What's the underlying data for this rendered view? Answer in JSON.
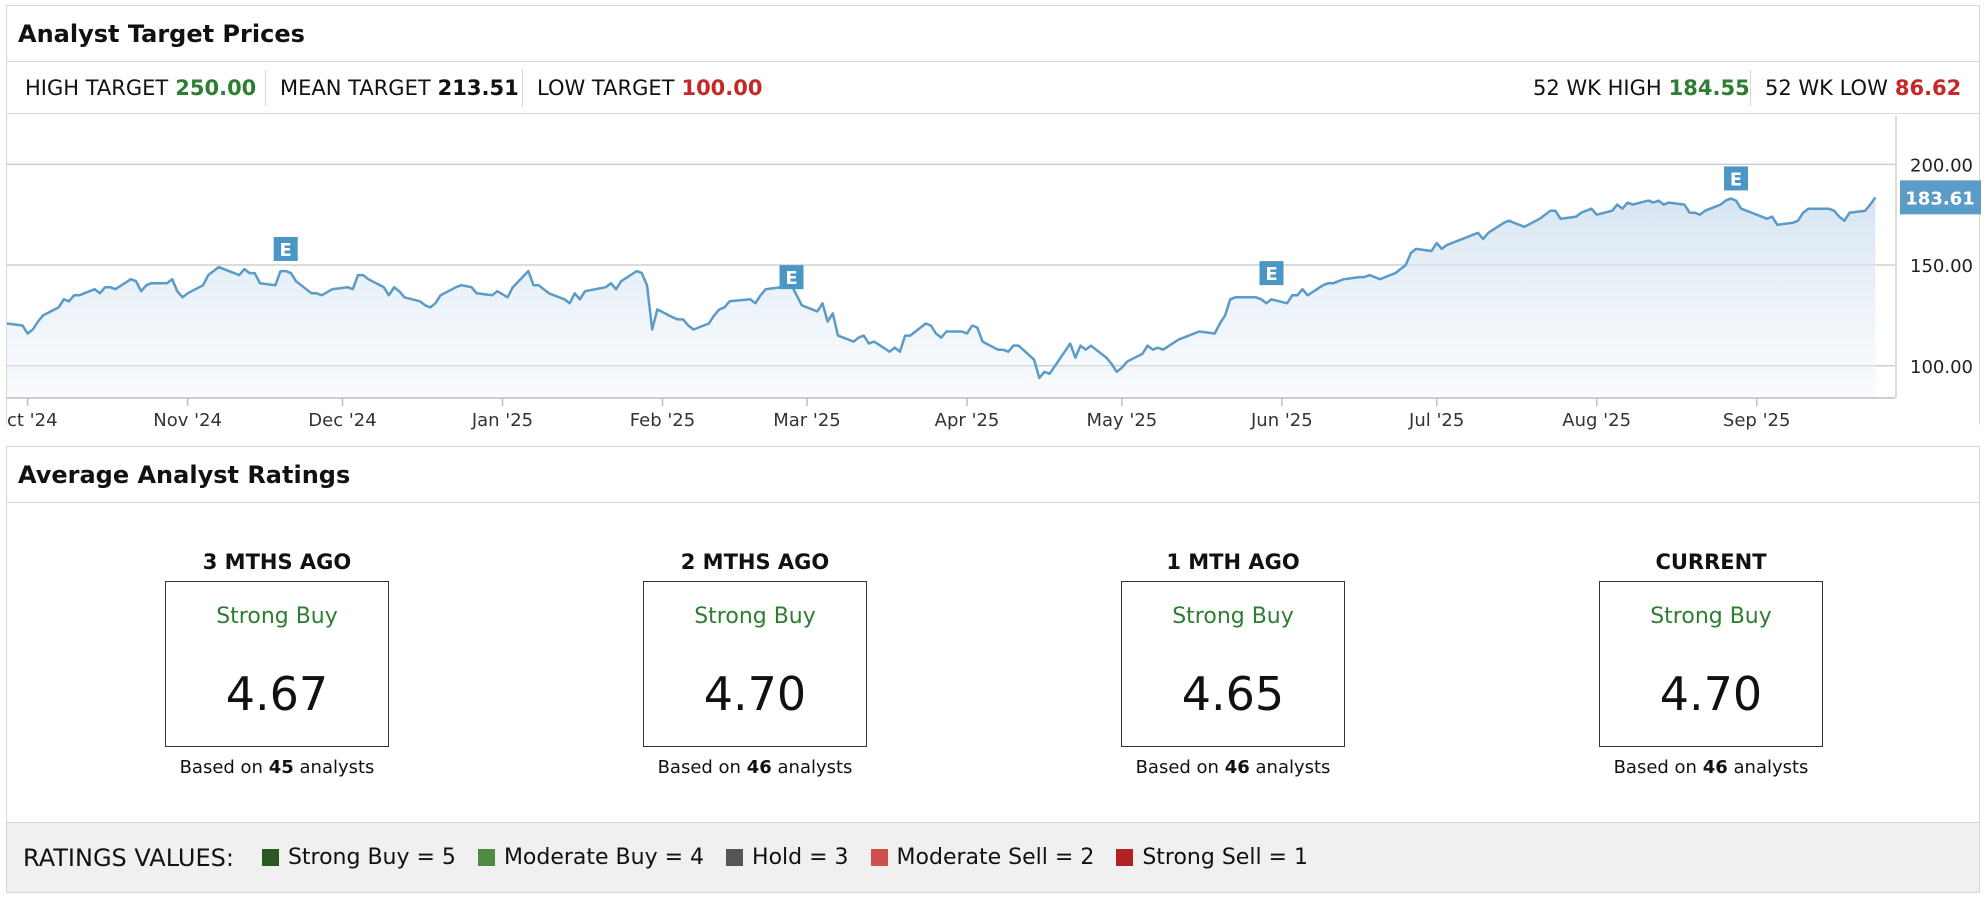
{
  "target_panel": {
    "title": "Analyst Target Prices",
    "high_target": {
      "label": "HIGH TARGET",
      "value": "250.00",
      "color": "#2e7d32"
    },
    "mean_target": {
      "label": "MEAN TARGET",
      "value": "213.51",
      "color": "#111111"
    },
    "low_target": {
      "label": "LOW TARGET",
      "value": "100.00",
      "color": "#c62828"
    },
    "wk52_high": {
      "label": "52 WK HIGH",
      "value": "184.55",
      "color": "#2e7d32"
    },
    "wk52_low": {
      "label": "52 WK LOW",
      "value": "86.62",
      "color": "#c62828"
    }
  },
  "chart_data": {
    "type": "area",
    "y_ticks": [
      "200.00",
      "150.00",
      "100.00"
    ],
    "y_tick_values": [
      200,
      150,
      100
    ],
    "ylim": [
      84,
      224
    ],
    "x_tick_labels": [
      "ct '24",
      "Nov '24",
      "Dec '24",
      "Jan '25",
      "Feb '25",
      "Mar '25",
      "Apr '25",
      "May '25",
      "Jun '25",
      "Jul '25",
      "Aug '25",
      "Sep '25"
    ],
    "x_tick_dates": [
      "2024-10-01",
      "2024-11-01",
      "2024-12-01",
      "2025-01-01",
      "2025-02-01",
      "2025-03-01",
      "2025-04-01",
      "2025-05-01",
      "2025-06-01",
      "2025-07-01",
      "2025-08-01",
      "2025-09-01"
    ],
    "current_price": "183.61",
    "earnings_marker_label": "E",
    "earnings_markers": [
      {
        "date": "2024-11-20",
        "price": 158
      },
      {
        "date": "2025-02-26",
        "price": 144
      },
      {
        "date": "2025-05-30",
        "price": 146
      },
      {
        "date": "2025-08-28",
        "price": 193
      }
    ],
    "line_color": "#5b9bc7",
    "series": [
      {
        "values": [
          [
            "2024-09-27",
            121
          ],
          [
            "2024-09-30",
            120
          ],
          [
            "2024-10-01",
            116
          ],
          [
            "2024-10-02",
            118
          ],
          [
            "2024-10-03",
            122
          ],
          [
            "2024-10-04",
            125
          ],
          [
            "2024-10-07",
            129
          ],
          [
            "2024-10-08",
            133
          ],
          [
            "2024-10-09",
            132
          ],
          [
            "2024-10-10",
            135
          ],
          [
            "2024-10-11",
            135
          ],
          [
            "2024-10-14",
            138
          ],
          [
            "2024-10-15",
            136
          ],
          [
            "2024-10-16",
            139
          ],
          [
            "2024-10-17",
            139
          ],
          [
            "2024-10-18",
            138
          ],
          [
            "2024-10-21",
            143
          ],
          [
            "2024-10-22",
            142
          ],
          [
            "2024-10-23",
            137
          ],
          [
            "2024-10-24",
            140
          ],
          [
            "2024-10-25",
            141
          ],
          [
            "2024-10-28",
            141
          ],
          [
            "2024-10-29",
            143
          ],
          [
            "2024-10-30",
            137
          ],
          [
            "2024-10-31",
            134
          ],
          [
            "2024-11-01",
            136
          ],
          [
            "2024-11-04",
            140
          ],
          [
            "2024-11-05",
            145
          ],
          [
            "2024-11-06",
            147
          ],
          [
            "2024-11-07",
            149
          ],
          [
            "2024-11-08",
            148
          ],
          [
            "2024-11-11",
            145
          ],
          [
            "2024-11-12",
            148
          ],
          [
            "2024-11-13",
            146
          ],
          [
            "2024-11-14",
            146
          ],
          [
            "2024-11-15",
            141
          ],
          [
            "2024-11-18",
            140
          ],
          [
            "2024-11-19",
            147
          ],
          [
            "2024-11-20",
            147
          ],
          [
            "2024-11-21",
            146
          ],
          [
            "2024-11-22",
            142
          ],
          [
            "2024-11-25",
            136
          ],
          [
            "2024-11-26",
            136
          ],
          [
            "2024-11-27",
            135
          ],
          [
            "2024-11-29",
            138
          ],
          [
            "2024-12-02",
            139
          ],
          [
            "2024-12-03",
            138
          ],
          [
            "2024-12-04",
            145
          ],
          [
            "2024-12-05",
            145
          ],
          [
            "2024-12-06",
            143
          ],
          [
            "2024-12-09",
            139
          ],
          [
            "2024-12-10",
            135
          ],
          [
            "2024-12-11",
            139
          ],
          [
            "2024-12-12",
            137
          ],
          [
            "2024-12-13",
            134
          ],
          [
            "2024-12-16",
            132
          ],
          [
            "2024-12-17",
            130
          ],
          [
            "2024-12-18",
            129
          ],
          [
            "2024-12-19",
            131
          ],
          [
            "2024-12-20",
            135
          ],
          [
            "2024-12-23",
            139
          ],
          [
            "2024-12-24",
            140
          ],
          [
            "2024-12-26",
            139
          ],
          [
            "2024-12-27",
            136
          ],
          [
            "2024-12-30",
            135
          ],
          [
            "2024-12-31",
            137
          ],
          [
            "2025-01-02",
            134
          ],
          [
            "2025-01-03",
            139
          ],
          [
            "2025-01-06",
            147
          ],
          [
            "2025-01-07",
            140
          ],
          [
            "2025-01-08",
            140
          ],
          [
            "2025-01-10",
            136
          ],
          [
            "2025-01-13",
            133
          ],
          [
            "2025-01-14",
            131
          ],
          [
            "2025-01-15",
            136
          ],
          [
            "2025-01-16",
            133
          ],
          [
            "2025-01-17",
            137
          ],
          [
            "2025-01-21",
            139
          ],
          [
            "2025-01-22",
            141
          ],
          [
            "2025-01-23",
            138
          ],
          [
            "2025-01-24",
            142
          ],
          [
            "2025-01-27",
            147
          ],
          [
            "2025-01-28",
            146
          ],
          [
            "2025-01-29",
            140
          ],
          [
            "2025-01-30",
            118
          ],
          [
            "2025-01-31",
            128
          ],
          [
            "2025-02-03",
            124
          ],
          [
            "2025-02-04",
            123
          ],
          [
            "2025-02-05",
            123
          ],
          [
            "2025-02-06",
            120
          ],
          [
            "2025-02-07",
            118
          ],
          [
            "2025-02-10",
            121
          ],
          [
            "2025-02-11",
            125
          ],
          [
            "2025-02-12",
            128
          ],
          [
            "2025-02-13",
            129
          ],
          [
            "2025-02-14",
            132
          ],
          [
            "2025-02-18",
            133
          ],
          [
            "2025-02-19",
            131
          ],
          [
            "2025-02-20",
            135
          ],
          [
            "2025-02-21",
            138
          ],
          [
            "2025-02-24",
            139
          ],
          [
            "2025-02-25",
            140
          ],
          [
            "2025-02-26",
            140
          ],
          [
            "2025-02-27",
            135
          ],
          [
            "2025-02-28",
            130
          ],
          [
            "2025-03-03",
            127
          ],
          [
            "2025-03-04",
            131
          ],
          [
            "2025-03-05",
            122
          ],
          [
            "2025-03-06",
            126
          ],
          [
            "2025-03-07",
            115
          ],
          [
            "2025-03-10",
            112
          ],
          [
            "2025-03-11",
            114
          ],
          [
            "2025-03-12",
            115
          ],
          [
            "2025-03-13",
            111
          ],
          [
            "2025-03-14",
            112
          ],
          [
            "2025-03-17",
            107
          ],
          [
            "2025-03-18",
            109
          ],
          [
            "2025-03-19",
            107
          ],
          [
            "2025-03-20",
            115
          ],
          [
            "2025-03-21",
            115
          ],
          [
            "2025-03-24",
            121
          ],
          [
            "2025-03-25",
            120
          ],
          [
            "2025-03-26",
            116
          ],
          [
            "2025-03-27",
            114
          ],
          [
            "2025-03-28",
            117
          ],
          [
            "2025-03-31",
            117
          ],
          [
            "2025-04-01",
            116
          ],
          [
            "2025-04-02",
            120
          ],
          [
            "2025-04-03",
            119
          ],
          [
            "2025-04-04",
            112
          ],
          [
            "2025-04-07",
            108
          ],
          [
            "2025-04-08",
            108
          ],
          [
            "2025-04-09",
            107
          ],
          [
            "2025-04-10",
            110
          ],
          [
            "2025-04-11",
            110
          ],
          [
            "2025-04-14",
            103
          ],
          [
            "2025-04-15",
            94
          ],
          [
            "2025-04-16",
            97
          ],
          [
            "2025-04-17",
            96
          ],
          [
            "2025-04-21",
            111
          ],
          [
            "2025-04-22",
            104
          ],
          [
            "2025-04-23",
            110
          ],
          [
            "2025-04-24",
            108
          ],
          [
            "2025-04-25",
            110
          ],
          [
            "2025-04-28",
            104
          ],
          [
            "2025-04-29",
            101
          ],
          [
            "2025-04-30",
            97
          ],
          [
            "2025-05-01",
            99
          ],
          [
            "2025-05-02",
            102
          ],
          [
            "2025-05-05",
            106
          ],
          [
            "2025-05-06",
            110
          ],
          [
            "2025-05-07",
            108
          ],
          [
            "2025-05-08",
            109
          ],
          [
            "2025-05-09",
            108
          ],
          [
            "2025-05-12",
            113
          ],
          [
            "2025-05-13",
            114
          ],
          [
            "2025-05-14",
            115
          ],
          [
            "2025-05-15",
            116
          ],
          [
            "2025-05-16",
            117
          ],
          [
            "2025-05-19",
            116
          ],
          [
            "2025-05-20",
            121
          ],
          [
            "2025-05-21",
            125
          ],
          [
            "2025-05-22",
            133
          ],
          [
            "2025-05-23",
            134
          ],
          [
            "2025-05-27",
            134
          ],
          [
            "2025-05-28",
            133
          ],
          [
            "2025-05-29",
            131
          ],
          [
            "2025-05-30",
            133
          ],
          [
            "2025-06-02",
            131
          ],
          [
            "2025-06-03",
            135
          ],
          [
            "2025-06-04",
            135
          ],
          [
            "2025-06-05",
            138
          ],
          [
            "2025-06-06",
            135
          ],
          [
            "2025-06-09",
            140
          ],
          [
            "2025-06-10",
            141
          ],
          [
            "2025-06-11",
            141
          ],
          [
            "2025-06-12",
            142
          ],
          [
            "2025-06-13",
            143
          ],
          [
            "2025-06-16",
            144
          ],
          [
            "2025-06-17",
            144
          ],
          [
            "2025-06-18",
            145
          ],
          [
            "2025-06-20",
            143
          ],
          [
            "2025-06-23",
            146
          ],
          [
            "2025-06-24",
            148
          ],
          [
            "2025-06-25",
            150
          ],
          [
            "2025-06-26",
            156
          ],
          [
            "2025-06-27",
            158
          ],
          [
            "2025-06-30",
            157
          ],
          [
            "2025-07-01",
            161
          ],
          [
            "2025-07-02",
            158
          ],
          [
            "2025-07-03",
            160
          ],
          [
            "2025-07-07",
            164
          ],
          [
            "2025-07-08",
            165
          ],
          [
            "2025-07-09",
            166
          ],
          [
            "2025-07-10",
            163
          ],
          [
            "2025-07-11",
            166
          ],
          [
            "2025-07-14",
            171
          ],
          [
            "2025-07-15",
            172
          ],
          [
            "2025-07-16",
            171
          ],
          [
            "2025-07-17",
            170
          ],
          [
            "2025-07-18",
            169
          ],
          [
            "2025-07-21",
            173
          ],
          [
            "2025-07-22",
            175
          ],
          [
            "2025-07-23",
            177
          ],
          [
            "2025-07-24",
            177
          ],
          [
            "2025-07-25",
            173
          ],
          [
            "2025-07-28",
            174
          ],
          [
            "2025-07-29",
            176
          ],
          [
            "2025-07-30",
            177
          ],
          [
            "2025-07-31",
            178
          ],
          [
            "2025-08-01",
            175
          ],
          [
            "2025-08-04",
            177
          ],
          [
            "2025-08-05",
            180
          ],
          [
            "2025-08-06",
            178
          ],
          [
            "2025-08-07",
            181
          ],
          [
            "2025-08-08",
            180
          ],
          [
            "2025-08-11",
            182
          ],
          [
            "2025-08-12",
            181
          ],
          [
            "2025-08-13",
            182
          ],
          [
            "2025-08-14",
            180
          ],
          [
            "2025-08-15",
            181
          ],
          [
            "2025-08-18",
            180
          ],
          [
            "2025-08-19",
            176
          ],
          [
            "2025-08-20",
            176
          ],
          [
            "2025-08-21",
            175
          ],
          [
            "2025-08-22",
            177
          ],
          [
            "2025-08-25",
            180
          ],
          [
            "2025-08-26",
            182
          ],
          [
            "2025-08-27",
            183
          ],
          [
            "2025-08-28",
            182
          ],
          [
            "2025-08-29",
            178
          ],
          [
            "2025-09-02",
            174
          ],
          [
            "2025-09-03",
            173
          ],
          [
            "2025-09-04",
            174
          ],
          [
            "2025-09-05",
            170
          ],
          [
            "2025-09-08",
            171
          ],
          [
            "2025-09-09",
            172
          ],
          [
            "2025-09-10",
            176
          ],
          [
            "2025-09-11",
            178
          ],
          [
            "2025-09-12",
            178
          ],
          [
            "2025-09-15",
            178
          ],
          [
            "2025-09-16",
            177
          ],
          [
            "2025-09-17",
            174
          ],
          [
            "2025-09-18",
            172
          ],
          [
            "2025-09-19",
            176
          ],
          [
            "2025-09-22",
            177
          ],
          [
            "2025-09-23",
            180
          ],
          [
            "2025-09-24",
            183.61
          ]
        ]
      }
    ]
  },
  "ratings_panel": {
    "title": "Average Analyst Ratings",
    "columns": [
      {
        "label": "3 MTHS AGO",
        "rating": "Strong Buy",
        "score": "4.67",
        "basis_prefix": "Based on",
        "count": "45",
        "basis_suffix": "analysts"
      },
      {
        "label": "2 MTHS AGO",
        "rating": "Strong Buy",
        "score": "4.70",
        "basis_prefix": "Based on",
        "count": "46",
        "basis_suffix": "analysts"
      },
      {
        "label": "1 MTH AGO",
        "rating": "Strong Buy",
        "score": "4.65",
        "basis_prefix": "Based on",
        "count": "46",
        "basis_suffix": "analysts"
      },
      {
        "label": "CURRENT",
        "rating": "Strong Buy",
        "score": "4.70",
        "basis_prefix": "Based on",
        "count": "46",
        "basis_suffix": "analysts"
      }
    ],
    "legend": {
      "title": "RATINGS VALUES:",
      "items": [
        {
          "label": "Strong Buy = 5",
          "color": "#2a5a22"
        },
        {
          "label": "Moderate Buy = 4",
          "color": "#4e8c43"
        },
        {
          "label": "Hold = 3",
          "color": "#555555"
        },
        {
          "label": "Moderate Sell = 2",
          "color": "#d05050"
        },
        {
          "label": "Strong Sell = 1",
          "color": "#b22222"
        }
      ]
    }
  }
}
